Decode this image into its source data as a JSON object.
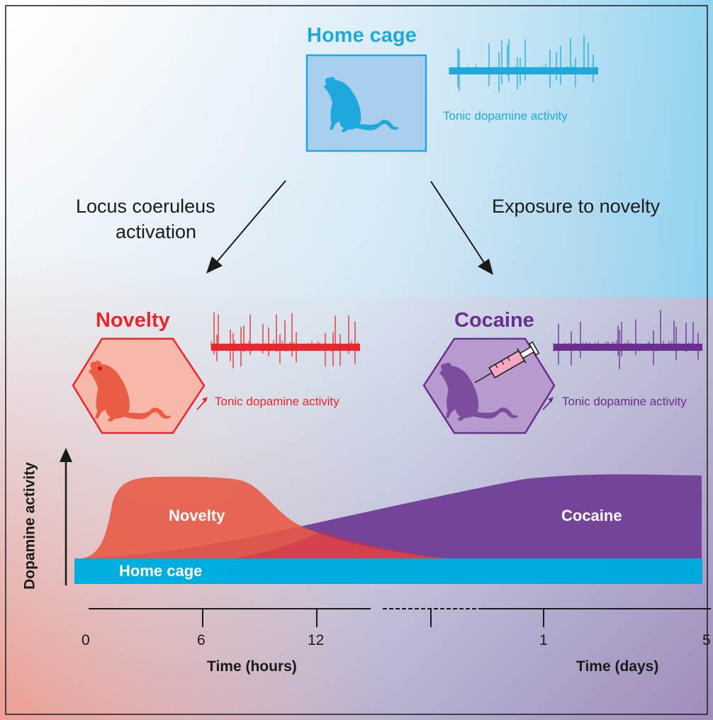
{
  "labels": {
    "home_cage_title": "Home cage",
    "novelty_title": "Novelty",
    "cocaine_title": "Cocaine",
    "tonic_home": "Tonic dopamine activity",
    "tonic_novelty": "Tonic dopamine activity",
    "tonic_cocaine": "Tonic dopamine activity",
    "locus_line1": "Locus coeruleus",
    "locus_line2": "activation",
    "exposure": "Exposure to novelty"
  },
  "chart": {
    "ylabel": "Dopamine activity",
    "area_novelty": "Novelty",
    "area_cocaine": "Cocaine",
    "area_home": "Home cage",
    "ticks": [
      "0",
      "6",
      "12",
      "1",
      "5"
    ],
    "xlabel_hours": "Time (hours)",
    "xlabel_days": "Time (days)"
  },
  "colors": {
    "home": "#1fa8dc",
    "novelty": "#e8262b",
    "cocaine": "#6a2e8f",
    "novelty_area": "#e85a46",
    "cocaine_area": "#74449a",
    "home_bar": "#00aee0"
  },
  "icons": [
    "rat-icon",
    "syringe-icon",
    "spike-trace"
  ]
}
